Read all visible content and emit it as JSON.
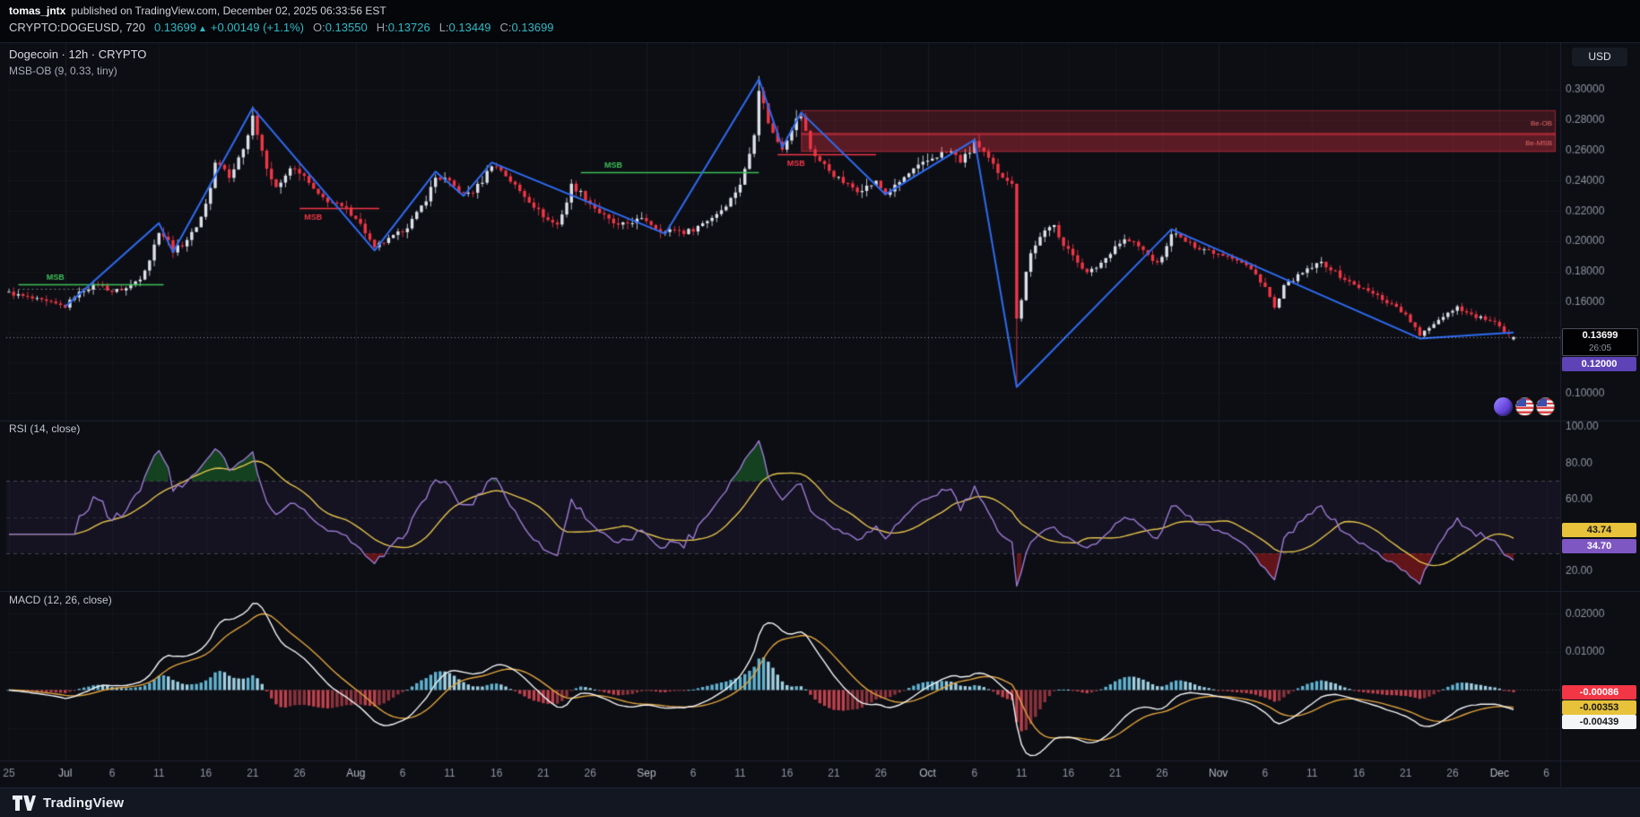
{
  "header": {
    "author": "tomas_jntx",
    "published": "published on TradingView.com, December 02, 2025 06:33:56 EST",
    "symbol": "CRYPTO:DOGEUSD, 720",
    "last": "0.13699",
    "arrow": "▲",
    "change": "+0.00149 (+1.1%)",
    "ohlc": [
      {
        "k": "O:",
        "v": "0.13550"
      },
      {
        "k": "H:",
        "v": "0.13726"
      },
      {
        "k": "L:",
        "v": "0.13449"
      },
      {
        "k": "C:",
        "v": "0.13699"
      }
    ]
  },
  "chart": {
    "legend_main_title": "Dogecoin · 12h · CRYPTO",
    "legend_main_indicator": "MSB-OB (9, 0.33, tiny)",
    "legend_rsi": "RSI (14, close)",
    "legend_macd": "MACD (12, 26, close)",
    "currency_button": "USD",
    "price_badge": "0.13699",
    "countdown": "26:05",
    "purple_level_badge": "0.12000",
    "rsi_badges": {
      "ma": "43.74",
      "rsi": "34.70"
    },
    "macd_badges": {
      "hist": "-0.00086",
      "signal": "-0.00353",
      "macd": "-0.00439"
    }
  },
  "footer": {
    "brand": "TradingView"
  },
  "colors": {
    "accent": "#2fbac6",
    "up": "#dde1ea",
    "down": "#f23645",
    "zigzag": "#2e6bf2",
    "msb_green": "#3fbf57",
    "rsi_line": "#9b7bd4",
    "rsi_ma": "#e3c34c",
    "macd_line": "#f2f3f5",
    "macd_signal": "#e0a23c",
    "hist_pos": "#62b3d0",
    "hist_pos_light": "#9fd0e2",
    "hist_neg": "#c0414c",
    "hist_neg_dark": "#8c333c",
    "badge_yellow": "#e7c23a",
    "badge_purple": "#7e57c2",
    "badge_level": "#5d43b5",
    "badge_red": "#f23645",
    "badge_white": "#f4f5f7"
  },
  "chart_data": {
    "type": "candlestick",
    "symbol": "DOGEUSD",
    "interval": "12h",
    "price_axis": {
      "min": 0.1,
      "max": 0.31,
      "labels": [
        0.3,
        0.28,
        0.26,
        0.24,
        0.22,
        0.2,
        0.18,
        0.16,
        0.1
      ]
    },
    "rsi_scale": [
      100,
      80,
      60,
      20
    ],
    "macd_scale": [
      0.02,
      0.01
    ],
    "rsi_settings": {
      "period": 14,
      "ma_period": 14,
      "upper": 70,
      "lower": 30,
      "mid": 50
    },
    "macd_settings": {
      "fast": 12,
      "slow": 26,
      "signal": 9
    },
    "last_bar": {
      "o": 0.1355,
      "h": 0.13726,
      "l": 0.13449,
      "c": 0.13699
    },
    "price_keyframes": [
      [
        0,
        0.166
      ],
      [
        2,
        0.163
      ],
      [
        4,
        0.16
      ],
      [
        6,
        0.157
      ],
      [
        7,
        0.164
      ],
      [
        8,
        0.168
      ],
      [
        9.5,
        0.172
      ],
      [
        11,
        0.167
      ],
      [
        12.5,
        0.169
      ],
      [
        14,
        0.176
      ],
      [
        15,
        0.188
      ],
      [
        16,
        0.207
      ],
      [
        17,
        0.2
      ],
      [
        17.5,
        0.194
      ],
      [
        18.5,
        0.198
      ],
      [
        19.5,
        0.205
      ],
      [
        20.5,
        0.216
      ],
      [
        21.5,
        0.235
      ],
      [
        22,
        0.252
      ],
      [
        23,
        0.247
      ],
      [
        23.5,
        0.242
      ],
      [
        24.5,
        0.255
      ],
      [
        25.5,
        0.27
      ],
      [
        26,
        0.285
      ],
      [
        26.5,
        0.271
      ],
      [
        27,
        0.258
      ],
      [
        27.5,
        0.249
      ],
      [
        28.5,
        0.236
      ],
      [
        29.5,
        0.242
      ],
      [
        30,
        0.248
      ],
      [
        31,
        0.246
      ],
      [
        32,
        0.238
      ],
      [
        33,
        0.23
      ],
      [
        34,
        0.227
      ],
      [
        35,
        0.224
      ],
      [
        36,
        0.221
      ],
      [
        37,
        0.216
      ],
      [
        38,
        0.206
      ],
      [
        39,
        0.195
      ],
      [
        39.5,
        0.198
      ],
      [
        40.5,
        0.201
      ],
      [
        41.5,
        0.205
      ],
      [
        42.5,
        0.21
      ],
      [
        43.5,
        0.218
      ],
      [
        44.5,
        0.228
      ],
      [
        45.5,
        0.242
      ],
      [
        46.5,
        0.241
      ],
      [
        47.5,
        0.236
      ],
      [
        48.5,
        0.231
      ],
      [
        49.5,
        0.233
      ],
      [
        50.5,
        0.24
      ],
      [
        51.5,
        0.251
      ],
      [
        52.5,
        0.247
      ],
      [
        53.5,
        0.24
      ],
      [
        54.5,
        0.233
      ],
      [
        55.5,
        0.227
      ],
      [
        56.5,
        0.22
      ],
      [
        57.5,
        0.214
      ],
      [
        58.5,
        0.211
      ],
      [
        59.5,
        0.226
      ],
      [
        60,
        0.237
      ],
      [
        61,
        0.232
      ],
      [
        62,
        0.225
      ],
      [
        63,
        0.219
      ],
      [
        64,
        0.214
      ],
      [
        65,
        0.21
      ],
      [
        66,
        0.212
      ],
      [
        67,
        0.214
      ],
      [
        68,
        0.214
      ],
      [
        69,
        0.209
      ],
      [
        70,
        0.206
      ],
      [
        71,
        0.208
      ],
      [
        72,
        0.206
      ],
      [
        73,
        0.208
      ],
      [
        74,
        0.212
      ],
      [
        75,
        0.216
      ],
      [
        76,
        0.221
      ],
      [
        77,
        0.228
      ],
      [
        78,
        0.238
      ],
      [
        78.5,
        0.247
      ],
      [
        79,
        0.258
      ],
      [
        79.5,
        0.272
      ],
      [
        80,
        0.301
      ],
      [
        80.5,
        0.29
      ],
      [
        81,
        0.279
      ],
      [
        81.5,
        0.271
      ],
      [
        82,
        0.266
      ],
      [
        82.5,
        0.262
      ],
      [
        83,
        0.268
      ],
      [
        83.5,
        0.275
      ],
      [
        84,
        0.28
      ],
      [
        84.5,
        0.283
      ],
      [
        85,
        0.272
      ],
      [
        85.5,
        0.261
      ],
      [
        86.5,
        0.253
      ],
      [
        87.5,
        0.247
      ],
      [
        88.5,
        0.241
      ],
      [
        89.5,
        0.237
      ],
      [
        90.5,
        0.234
      ],
      [
        91.5,
        0.236
      ],
      [
        92.5,
        0.239
      ],
      [
        93.5,
        0.231
      ],
      [
        94.5,
        0.236
      ],
      [
        95.5,
        0.242
      ],
      [
        96.5,
        0.247
      ],
      [
        97.5,
        0.251
      ],
      [
        98.5,
        0.255
      ],
      [
        99.5,
        0.258
      ],
      [
        100.5,
        0.259
      ],
      [
        101.5,
        0.253
      ],
      [
        102.5,
        0.259
      ],
      [
        103,
        0.266
      ],
      [
        103.5,
        0.261
      ],
      [
        104.5,
        0.254
      ],
      [
        105.5,
        0.246
      ],
      [
        106.5,
        0.241
      ],
      [
        107,
        0.237
      ],
      [
        107.5,
        0.15
      ],
      [
        108,
        0.162
      ],
      [
        108.5,
        0.18
      ],
      [
        109,
        0.192
      ],
      [
        109.5,
        0.198
      ],
      [
        110.5,
        0.206
      ],
      [
        111.5,
        0.212
      ],
      [
        112,
        0.204
      ],
      [
        112.5,
        0.197
      ],
      [
        113.5,
        0.191
      ],
      [
        114.5,
        0.183
      ],
      [
        115,
        0.179
      ],
      [
        116,
        0.183
      ],
      [
        117,
        0.189
      ],
      [
        118,
        0.197
      ],
      [
        119,
        0.201
      ],
      [
        120,
        0.199
      ],
      [
        121,
        0.194
      ],
      [
        122,
        0.188
      ],
      [
        122.5,
        0.185
      ],
      [
        123.5,
        0.196
      ],
      [
        124,
        0.206
      ],
      [
        125,
        0.202
      ],
      [
        126,
        0.198
      ],
      [
        127,
        0.196
      ],
      [
        128,
        0.194
      ],
      [
        129,
        0.192
      ],
      [
        130,
        0.191
      ],
      [
        131,
        0.188
      ],
      [
        132,
        0.184
      ],
      [
        133,
        0.178
      ],
      [
        134,
        0.17
      ],
      [
        134.5,
        0.163
      ],
      [
        135,
        0.156
      ],
      [
        135.5,
        0.162
      ],
      [
        136,
        0.17
      ],
      [
        137,
        0.175
      ],
      [
        138,
        0.179
      ],
      [
        139,
        0.183
      ],
      [
        140,
        0.186
      ],
      [
        141,
        0.182
      ],
      [
        142,
        0.177
      ],
      [
        143,
        0.173
      ],
      [
        144,
        0.17
      ],
      [
        145,
        0.167
      ],
      [
        146,
        0.164
      ],
      [
        147,
        0.16
      ],
      [
        148,
        0.157
      ],
      [
        149,
        0.151
      ],
      [
        150,
        0.143
      ],
      [
        150.5,
        0.137
      ],
      [
        151,
        0.141
      ],
      [
        152,
        0.146
      ],
      [
        153,
        0.151
      ],
      [
        154,
        0.155
      ],
      [
        154.5,
        0.157
      ],
      [
        155.5,
        0.153
      ],
      [
        156.5,
        0.15
      ],
      [
        157.5,
        0.149
      ],
      [
        158,
        0.147
      ],
      [
        158.5,
        0.146
      ],
      [
        159,
        0.143
      ],
      [
        159.5,
        0.14
      ],
      [
        160,
        0.138
      ],
      [
        160.5,
        0.137
      ]
    ],
    "wick_overrides": [
      [
        52,
        "high",
        0.289
      ],
      [
        160,
        "high",
        0.309
      ],
      [
        215,
        "low",
        0.104
      ]
    ],
    "zigzag": [
      [
        6,
        0.157
      ],
      [
        16,
        0.212
      ],
      [
        17.5,
        0.193
      ],
      [
        26,
        0.288
      ],
      [
        39,
        0.194
      ],
      [
        45.5,
        0.246
      ],
      [
        48.5,
        0.23
      ],
      [
        51.5,
        0.252
      ],
      [
        70,
        0.205
      ],
      [
        80,
        0.307
      ],
      [
        82.5,
        0.262
      ],
      [
        84.5,
        0.285
      ],
      [
        93.5,
        0.231
      ],
      [
        103,
        0.267
      ],
      [
        107.5,
        0.104
      ],
      [
        124,
        0.208
      ],
      [
        150.5,
        0.136
      ],
      [
        160.5,
        0.14
      ]
    ],
    "msb_lines": [
      {
        "price": 0.172,
        "from": 1,
        "to": 16.5,
        "color": "green",
        "label": "MSB",
        "label_day": 4,
        "above": true
      },
      {
        "price": 0.222,
        "from": 31,
        "to": 39.5,
        "color": "red",
        "label": "MSB",
        "label_day": 31.5,
        "above": false
      },
      {
        "price": 0.2455,
        "from": 61,
        "to": 80,
        "color": "green",
        "label": "MSB",
        "label_day": 63.5,
        "above": true
      },
      {
        "price": 0.2575,
        "from": 82,
        "to": 92.5,
        "color": "red",
        "label": "MSB",
        "label_day": 83,
        "above": false
      }
    ],
    "dotted_level": {
      "price": 0.169,
      "from": 1,
      "to": 13
    },
    "ob_zones": [
      {
        "label": "Be-OB",
        "top": 0.2865,
        "bottom": 0.27,
        "from_day": 84.5,
        "alpha": 0.2
      },
      {
        "label": "Be-MSB",
        "top": 0.2715,
        "bottom": 0.259,
        "from_day": 84.5,
        "alpha": 0.34
      }
    ],
    "current_price": 0.13699,
    "time_ticks": [
      [
        0,
        "25"
      ],
      [
        12,
        "Jul"
      ],
      [
        22,
        "6"
      ],
      [
        32,
        "11"
      ],
      [
        42,
        "16"
      ],
      [
        52,
        "21"
      ],
      [
        62,
        "26"
      ],
      [
        74,
        "Aug"
      ],
      [
        84,
        "6"
      ],
      [
        94,
        "11"
      ],
      [
        104,
        "16"
      ],
      [
        114,
        "21"
      ],
      [
        124,
        "26"
      ],
      [
        136,
        "Sep"
      ],
      [
        146,
        "6"
      ],
      [
        156,
        "11"
      ],
      [
        166,
        "16"
      ],
      [
        176,
        "21"
      ],
      [
        186,
        "26"
      ],
      [
        196,
        "Oct"
      ],
      [
        206,
        "6"
      ],
      [
        216,
        "11"
      ],
      [
        226,
        "16"
      ],
      [
        236,
        "21"
      ],
      [
        246,
        "26"
      ],
      [
        258,
        "Nov"
      ],
      [
        268,
        "6"
      ],
      [
        278,
        "11"
      ],
      [
        288,
        "16"
      ],
      [
        298,
        "21"
      ],
      [
        308,
        "26"
      ],
      [
        318,
        "Dec"
      ],
      [
        328,
        "6"
      ]
    ]
  }
}
